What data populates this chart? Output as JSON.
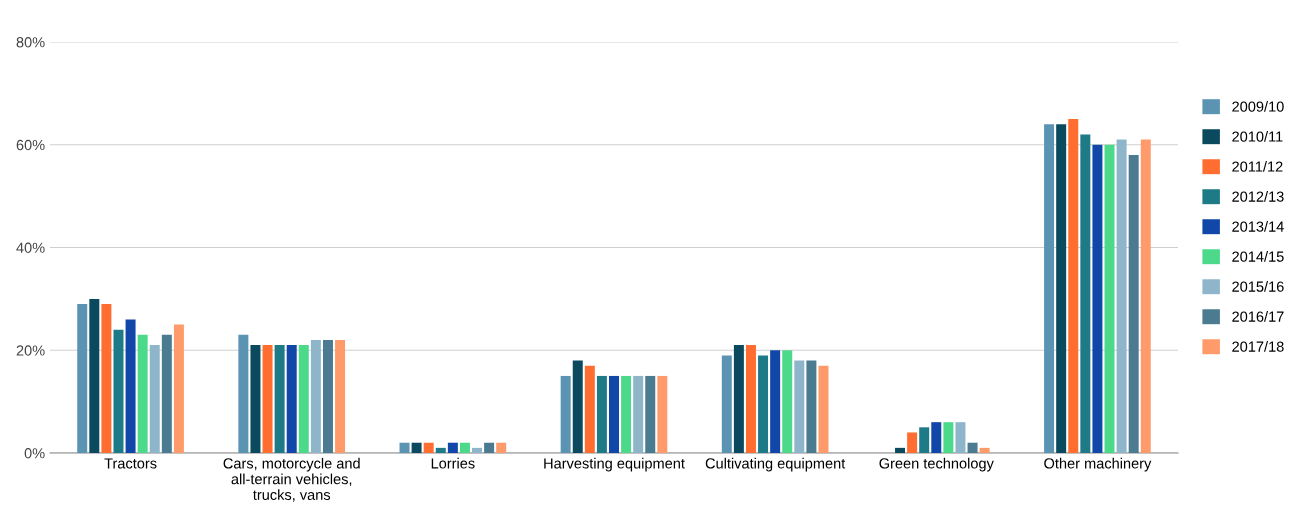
{
  "chart_data": {
    "type": "bar",
    "categories": [
      "Tractors",
      "Cars, motorcycle and\nall-terrain vehicles,\ntrucks, vans",
      "Lorries",
      "Harvesting equipment",
      "Cultivating equipment",
      "Green technology",
      "Other machinery"
    ],
    "series": [
      {
        "name": "2009/10",
        "color": "#5b93b3",
        "values": [
          29,
          23,
          2,
          15,
          19,
          0,
          64
        ]
      },
      {
        "name": "2010/11",
        "color": "#0b4a5e",
        "values": [
          30,
          21,
          2,
          18,
          21,
          1,
          64
        ]
      },
      {
        "name": "2011/12",
        "color": "#ff6d31",
        "values": [
          29,
          21,
          2,
          17,
          21,
          4,
          65
        ]
      },
      {
        "name": "2012/13",
        "color": "#1f7a87",
        "values": [
          24,
          21,
          1,
          15,
          19,
          5,
          62
        ]
      },
      {
        "name": "2013/14",
        "color": "#1147a8",
        "values": [
          26,
          21,
          2,
          15,
          20,
          6,
          60
        ]
      },
      {
        "name": "2014/15",
        "color": "#4dd98a",
        "values": [
          23,
          21,
          2,
          15,
          20,
          6,
          60
        ]
      },
      {
        "name": "2015/16",
        "color": "#8fb5cb",
        "values": [
          21,
          22,
          1,
          15,
          18,
          6,
          61
        ]
      },
      {
        "name": "2016/17",
        "color": "#4b7b90",
        "values": [
          23,
          22,
          2,
          15,
          18,
          2,
          58
        ]
      },
      {
        "name": "2017/18",
        "color": "#ff9a6b",
        "values": [
          25,
          22,
          2,
          15,
          17,
          1,
          61
        ]
      }
    ],
    "ylim": [
      0,
      80
    ],
    "yticks": [
      {
        "value": 0,
        "label": "0%"
      },
      {
        "value": 20,
        "label": "20%"
      },
      {
        "value": 40,
        "label": "40%"
      },
      {
        "value": 60,
        "label": "60%"
      },
      {
        "value": 80,
        "label": "80%"
      }
    ],
    "grid": "y",
    "legend": "right"
  }
}
